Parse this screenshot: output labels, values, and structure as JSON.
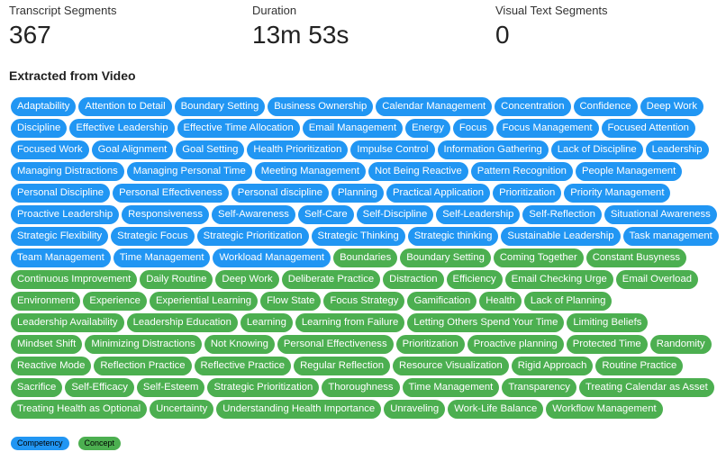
{
  "stats": [
    {
      "label": "Transcript Segments",
      "value": "367"
    },
    {
      "label": "Duration",
      "value": "13m 53s"
    },
    {
      "label": "Visual Text Segments",
      "value": "0"
    }
  ],
  "section_title": "Extracted from Video",
  "tags": {
    "competency": [
      "Adaptability",
      "Attention to Detail",
      "Boundary Setting",
      "Business Ownership",
      "Calendar Management",
      "Concentration",
      "Confidence",
      "Deep Work",
      "Discipline",
      "Effective Leadership",
      "Effective Time Allocation",
      "Email Management",
      "Energy",
      "Focus",
      "Focus Management",
      "Focused Attention",
      "Focused Work",
      "Goal Alignment",
      "Goal Setting",
      "Health Prioritization",
      "Impulse Control",
      "Information Gathering",
      "Lack of Discipline",
      "Leadership",
      "Managing Distractions",
      "Managing Personal Time",
      "Meeting Management",
      "Not Being Reactive",
      "Pattern Recognition",
      "People Management",
      "Personal Discipline",
      "Personal Effectiveness",
      "Personal discipline",
      "Planning",
      "Practical Application",
      "Prioritization",
      "Priority Management",
      "Proactive Leadership",
      "Responsiveness",
      "Self-Awareness",
      "Self-Care",
      "Self-Discipline",
      "Self-Leadership",
      "Self-Reflection",
      "Situational Awareness",
      "Strategic Flexibility",
      "Strategic Focus",
      "Strategic Prioritization",
      "Strategic Thinking",
      "Strategic thinking",
      "Sustainable Leadership",
      "Task management",
      "Team Management",
      "Time Management",
      "Workload Management"
    ],
    "concept": [
      "Boundaries",
      "Boundary Setting",
      "Coming Together",
      "Constant Busyness",
      "Continuous Improvement",
      "Daily Routine",
      "Deep Work",
      "Deliberate Practice",
      "Distraction",
      "Efficiency",
      "Email Checking Urge",
      "Email Overload",
      "Environment",
      "Experience",
      "Experiential Learning",
      "Flow State",
      "Focus Strategy",
      "Gamification",
      "Health",
      "Lack of Planning",
      "Leadership Availability",
      "Leadership Education",
      "Learning",
      "Learning from Failure",
      "Letting Others Spend Your Time",
      "Limiting Beliefs",
      "Mindset Shift",
      "Minimizing Distractions",
      "Not Knowing",
      "Personal Effectiveness",
      "Prioritization",
      "Proactive planning",
      "Protected Time",
      "Randomity",
      "Reactive Mode",
      "Reflection Practice",
      "Reflective Practice",
      "Regular Reflection",
      "Resource Visualization",
      "Rigid Approach",
      "Routine Practice",
      "Sacrifice",
      "Self-Efficacy",
      "Self-Esteem",
      "Strategic Prioritization",
      "Thoroughness",
      "Time Management",
      "Transparency",
      "Treating Calendar as Asset",
      "Treating Health as Optional",
      "Uncertainty",
      "Understanding Health Importance",
      "Unraveling",
      "Work-Life Balance",
      "Workflow Management"
    ]
  },
  "legend": {
    "competency": "Competency",
    "concept": "Concept"
  }
}
